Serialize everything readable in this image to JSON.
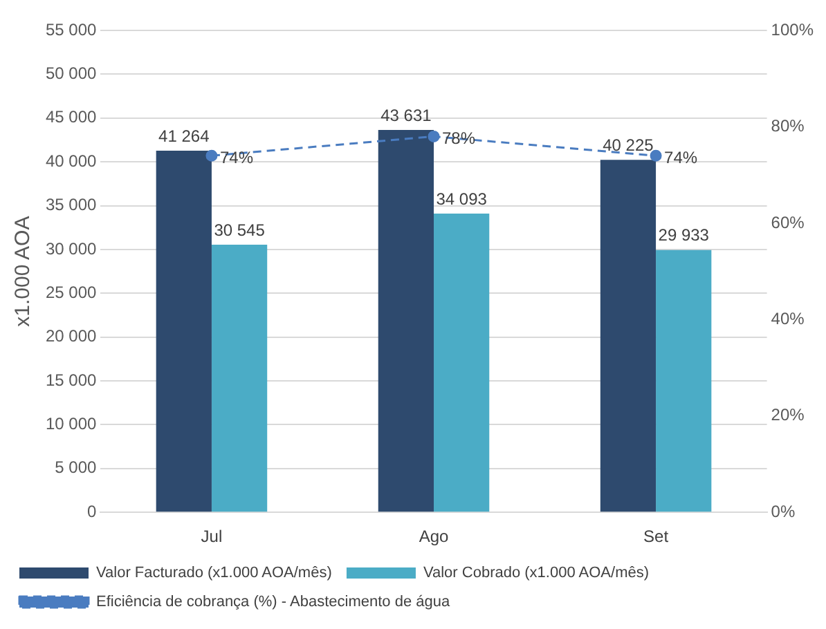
{
  "chart_data": {
    "type": "bar",
    "ylabel": "x1.000 AOA",
    "categories": [
      "Jul",
      "Ago",
      "Set"
    ],
    "series": [
      {
        "name": "Valor Facturado (x1.000 AOA/mês)",
        "color": "#2e4a6e",
        "values": [
          41264,
          43631,
          40225
        ],
        "value_labels": [
          "41 264",
          "43 631",
          "40 225"
        ]
      },
      {
        "name": "Valor Cobrado (x1.000 AOA/mês)",
        "color": "#4bacc6",
        "values": [
          30545,
          34093,
          29933
        ],
        "value_labels": [
          "30 545",
          "34 093",
          "29 933"
        ]
      },
      {
        "name": "Eficiência de cobrança (%) - Abastecimento de água",
        "type": "line",
        "axis": "y2",
        "color": "#4a7cc0",
        "marker": "circle",
        "line_style": "dashed",
        "values": [
          74,
          78,
          74
        ],
        "value_labels": [
          "74%",
          "78%",
          "74%"
        ]
      }
    ],
    "ylim": [
      0,
      55000
    ],
    "yticks": [
      {
        "value": 0,
        "label": "0"
      },
      {
        "value": 5000,
        "label": "5 000"
      },
      {
        "value": 10000,
        "label": "10 000"
      },
      {
        "value": 15000,
        "label": "15 000"
      },
      {
        "value": 20000,
        "label": "20 000"
      },
      {
        "value": 25000,
        "label": "25 000"
      },
      {
        "value": 30000,
        "label": "30 000"
      },
      {
        "value": 35000,
        "label": "35 000"
      },
      {
        "value": 40000,
        "label": "40 000"
      },
      {
        "value": 45000,
        "label": "45 000"
      },
      {
        "value": 50000,
        "label": "50 000"
      },
      {
        "value": 55000,
        "label": "55 000"
      }
    ],
    "y2lim": [
      0,
      100
    ],
    "y2ticks": [
      {
        "value": 0,
        "label": "0%"
      },
      {
        "value": 20,
        "label": "20%"
      },
      {
        "value": 40,
        "label": "40%"
      },
      {
        "value": 60,
        "label": "60%"
      },
      {
        "value": 80,
        "label": "80%"
      },
      {
        "value": 100,
        "label": "100%"
      }
    ],
    "grid": "y",
    "legend": "bottom"
  }
}
